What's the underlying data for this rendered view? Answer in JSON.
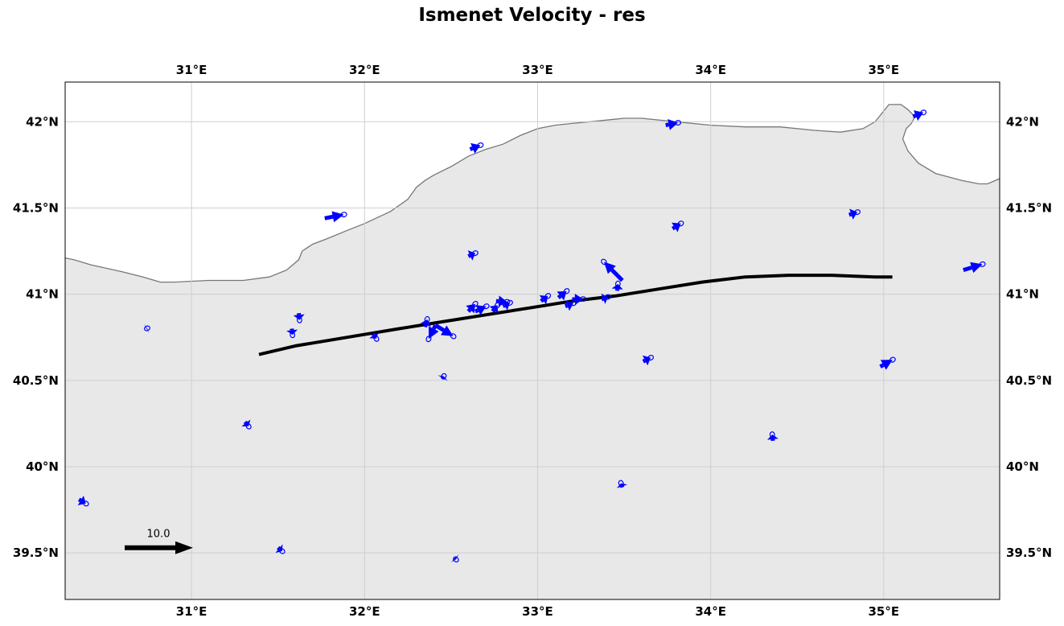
{
  "title": "Ismenet Velocity - res",
  "colors": {
    "land": "#e8e8e8",
    "sea": "#ffffff",
    "coast": "#777777",
    "grid": "#cfcfcf",
    "vector": "#0000ff",
    "fault": "#000000"
  },
  "map": {
    "lon_range": [
      30.27,
      35.67
    ],
    "lat_range": [
      39.23,
      42.23
    ],
    "lon_ticks": [
      {
        "value": 31,
        "label": "31°E"
      },
      {
        "value": 32,
        "label": "32°E"
      },
      {
        "value": 33,
        "label": "33°E"
      },
      {
        "value": 34,
        "label": "34°E"
      },
      {
        "value": 35,
        "label": "35°E"
      }
    ],
    "lat_ticks": [
      {
        "value": 42.0,
        "label": "42°N"
      },
      {
        "value": 41.5,
        "label": "41.5°N"
      },
      {
        "value": 41.0,
        "label": "41°N"
      },
      {
        "value": 40.5,
        "label": "40.5°N"
      },
      {
        "value": 40.0,
        "label": "40°N"
      },
      {
        "value": 39.5,
        "label": "39.5°N"
      }
    ],
    "scale_arrow": {
      "label": "10.0",
      "value": 10.0
    }
  },
  "coastline": [
    [
      30.27,
      41.21
    ],
    [
      30.32,
      41.2
    ],
    [
      30.42,
      41.17
    ],
    [
      30.6,
      41.13
    ],
    [
      30.72,
      41.1
    ],
    [
      30.82,
      41.07
    ],
    [
      30.9,
      41.07
    ],
    [
      31.1,
      41.08
    ],
    [
      31.3,
      41.08
    ],
    [
      31.45,
      41.1
    ],
    [
      31.55,
      41.14
    ],
    [
      31.62,
      41.2
    ],
    [
      31.64,
      41.25
    ],
    [
      31.7,
      41.29
    ],
    [
      31.78,
      41.32
    ],
    [
      31.9,
      41.37
    ],
    [
      32.0,
      41.41
    ],
    [
      32.15,
      41.48
    ],
    [
      32.25,
      41.55
    ],
    [
      32.3,
      41.62
    ],
    [
      32.35,
      41.66
    ],
    [
      32.4,
      41.69
    ],
    [
      32.5,
      41.74
    ],
    [
      32.6,
      41.8
    ],
    [
      32.7,
      41.84
    ],
    [
      32.8,
      41.87
    ],
    [
      32.9,
      41.92
    ],
    [
      33.0,
      41.96
    ],
    [
      33.1,
      41.98
    ],
    [
      33.2,
      41.99
    ],
    [
      33.3,
      42.0
    ],
    [
      33.4,
      42.01
    ],
    [
      33.5,
      42.02
    ],
    [
      33.6,
      42.02
    ],
    [
      33.8,
      42.0
    ],
    [
      34.0,
      41.98
    ],
    [
      34.2,
      41.97
    ],
    [
      34.4,
      41.97
    ],
    [
      34.6,
      41.95
    ],
    [
      34.75,
      41.94
    ],
    [
      34.88,
      41.96
    ],
    [
      34.95,
      42.0
    ],
    [
      34.99,
      42.05
    ],
    [
      35.03,
      42.1
    ],
    [
      35.1,
      42.1
    ],
    [
      35.14,
      42.07
    ],
    [
      35.18,
      42.03
    ],
    [
      35.16,
      41.99
    ],
    [
      35.13,
      41.96
    ],
    [
      35.11,
      41.9
    ],
    [
      35.14,
      41.83
    ],
    [
      35.2,
      41.76
    ],
    [
      35.3,
      41.7
    ],
    [
      35.45,
      41.66
    ],
    [
      35.55,
      41.64
    ],
    [
      35.6,
      41.64
    ],
    [
      35.67,
      41.67
    ]
  ],
  "fault_trace": [
    [
      31.39,
      40.65
    ],
    [
      31.6,
      40.7
    ],
    [
      31.9,
      40.75
    ],
    [
      32.2,
      40.8
    ],
    [
      32.45,
      40.84
    ],
    [
      32.7,
      40.88
    ],
    [
      32.95,
      40.92
    ],
    [
      33.2,
      40.96
    ],
    [
      33.45,
      40.99
    ],
    [
      33.7,
      41.03
    ],
    [
      33.95,
      41.07
    ],
    [
      34.2,
      41.1
    ],
    [
      34.45,
      41.11
    ],
    [
      34.7,
      41.11
    ],
    [
      34.95,
      41.1
    ],
    [
      35.05,
      41.1
    ]
  ],
  "vectors": [
    {
      "lon": 30.74,
      "lat": 40.8,
      "ve": 0.1,
      "vn": 0.05
    },
    {
      "lon": 30.35,
      "lat": 39.81,
      "ve": 1.0,
      "vn": -0.6
    },
    {
      "lon": 31.31,
      "lat": 40.26,
      "ve": 0.5,
      "vn": -0.65
    },
    {
      "lon": 31.5,
      "lat": 39.53,
      "ve": 0.6,
      "vn": -0.5
    },
    {
      "lon": 31.58,
      "lat": 40.8,
      "ve": 0.1,
      "vn": -0.9
    },
    {
      "lon": 31.62,
      "lat": 40.89,
      "ve": 0.1,
      "vn": -1.0
    },
    {
      "lon": 32.05,
      "lat": 40.77,
      "ve": 0.45,
      "vn": -0.7
    },
    {
      "lon": 31.77,
      "lat": 41.44,
      "ve": 2.8,
      "vn": 0.55
    },
    {
      "lon": 32.35,
      "lat": 40.81,
      "ve": 0.3,
      "vn": 1.1
    },
    {
      "lon": 32.41,
      "lat": 40.82,
      "ve": 2.6,
      "vn": -1.6
    },
    {
      "lon": 32.41,
      "lat": 40.82,
      "ve": -1.0,
      "vn": -2.0
    },
    {
      "lon": 32.45,
      "lat": 40.51,
      "ve": 0.2,
      "vn": 0.35
    },
    {
      "lon": 32.52,
      "lat": 39.47,
      "ve": 0.2,
      "vn": -0.2
    },
    {
      "lon": 32.61,
      "lat": 41.84,
      "ve": 1.5,
      "vn": 0.6
    },
    {
      "lon": 32.6,
      "lat": 41.22,
      "ve": 1.0,
      "vn": 0.45
    },
    {
      "lon": 32.6,
      "lat": 40.9,
      "ve": 1.0,
      "vn": 1.1
    },
    {
      "lon": 32.64,
      "lat": 40.9,
      "ve": 1.6,
      "vn": 0.75
    },
    {
      "lon": 32.74,
      "lat": 40.9,
      "ve": 0.7,
      "vn": 0.9
    },
    {
      "lon": 32.8,
      "lat": 40.93,
      "ve": 1.0,
      "vn": 0.5
    },
    {
      "lon": 32.76,
      "lat": 40.96,
      "ve": 1.6,
      "vn": -0.1
    },
    {
      "lon": 33.02,
      "lat": 40.96,
      "ve": 1.0,
      "vn": 0.75
    },
    {
      "lon": 33.12,
      "lat": 40.98,
      "ve": 1.2,
      "vn": 0.95
    },
    {
      "lon": 33.16,
      "lat": 40.93,
      "ve": 1.2,
      "vn": 0.45
    },
    {
      "lon": 33.2,
      "lat": 40.97,
      "ve": 1.6,
      "vn": 0.05
    },
    {
      "lon": 33.37,
      "lat": 40.97,
      "ve": 0.9,
      "vn": 0.35
    },
    {
      "lon": 33.46,
      "lat": 41.02,
      "ve": 0.1,
      "vn": 1.0
    },
    {
      "lon": 33.49,
      "lat": 41.08,
      "ve": -2.7,
      "vn": 2.7
    },
    {
      "lon": 33.49,
      "lat": 39.88,
      "ve": -0.2,
      "vn": 0.6
    },
    {
      "lon": 33.61,
      "lat": 40.61,
      "ve": 1.1,
      "vn": 0.55
    },
    {
      "lon": 33.78,
      "lat": 41.38,
      "ve": 1.2,
      "vn": 0.75
    },
    {
      "lon": 33.74,
      "lat": 41.98,
      "ve": 1.8,
      "vn": 0.35
    },
    {
      "lon": 34.36,
      "lat": 40.15,
      "ve": -0.1,
      "vn": 0.9
    },
    {
      "lon": 34.8,
      "lat": 41.46,
      "ve": 1.2,
      "vn": 0.4
    },
    {
      "lon": 34.98,
      "lat": 40.58,
      "ve": 1.8,
      "vn": 1.0
    },
    {
      "lon": 35.17,
      "lat": 42.03,
      "ve": 1.5,
      "vn": 0.6
    },
    {
      "lon": 35.46,
      "lat": 41.14,
      "ve": 2.8,
      "vn": 0.85
    }
  ]
}
